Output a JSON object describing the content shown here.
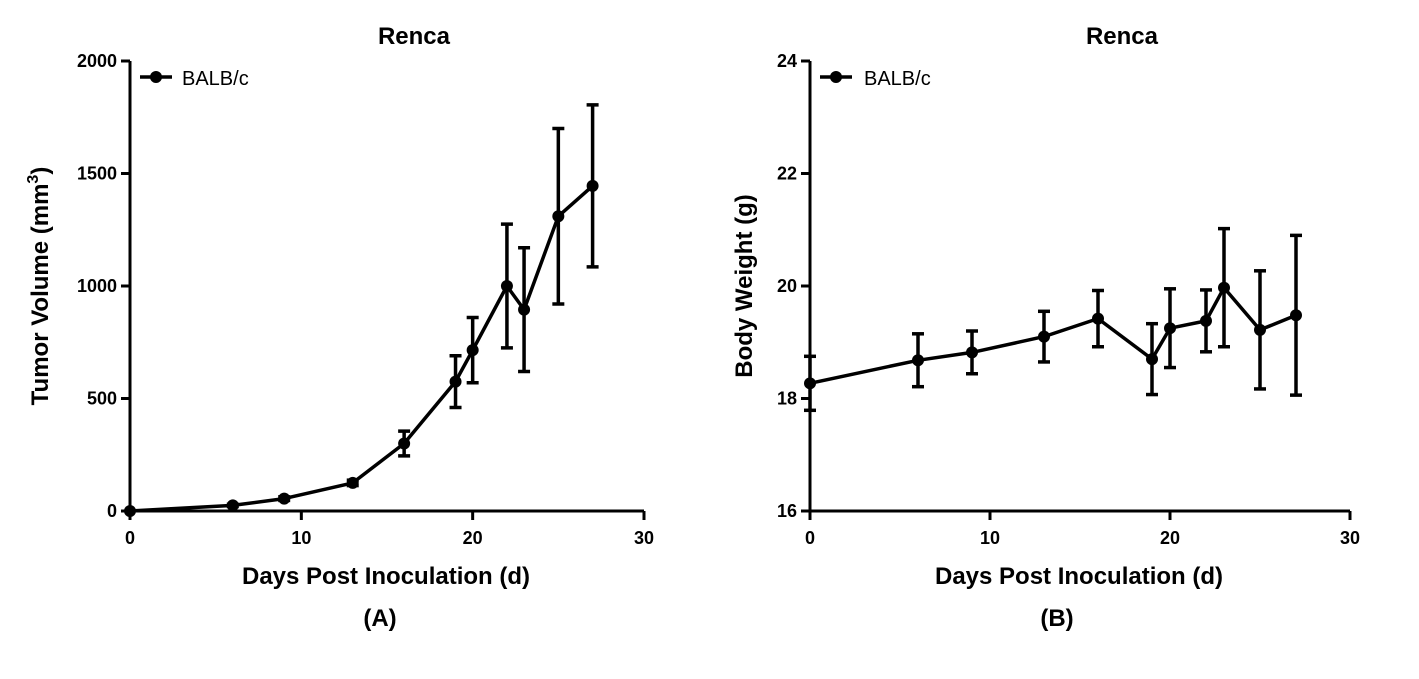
{
  "chart_data": [
    {
      "type": "line",
      "panel": "(A)",
      "title": "Renca",
      "xlabel": "Days Post Inoculation (d)",
      "ylabel": "Tumor Volume (mm",
      "ylabel_sup": "3",
      "ylabel_close": ")",
      "xlim": [
        0,
        30
      ],
      "ylim": [
        0,
        2000
      ],
      "xticks": [
        0,
        10,
        20,
        30
      ],
      "yticks": [
        0,
        500,
        1000,
        1500,
        2000
      ],
      "legend": "top-left",
      "series": [
        {
          "name": "BALB/c",
          "x": [
            0,
            6,
            9,
            13,
            16,
            19,
            20,
            22,
            23,
            25,
            27
          ],
          "y": [
            0,
            25,
            55,
            125,
            300,
            575,
            715,
            1000,
            895,
            1310,
            1445
          ],
          "err": [
            0,
            5,
            8,
            12,
            55,
            115,
            145,
            275,
            275,
            390,
            360
          ]
        }
      ]
    },
    {
      "type": "line",
      "panel": "(B)",
      "title": "Renca",
      "xlabel": "Days Post Inoculation (d)",
      "ylabel": "Body Weight (g)",
      "ylabel_sup": "",
      "ylabel_close": "",
      "xlim": [
        0,
        30
      ],
      "ylim": [
        16,
        24
      ],
      "xticks": [
        0,
        10,
        20,
        30
      ],
      "yticks": [
        16,
        18,
        20,
        22,
        24
      ],
      "legend": "top-left",
      "series": [
        {
          "name": "BALB/c",
          "x": [
            0,
            6,
            9,
            13,
            16,
            19,
            20,
            22,
            23,
            25,
            27
          ],
          "y": [
            18.27,
            18.68,
            18.82,
            19.1,
            19.42,
            18.7,
            19.25,
            19.38,
            19.97,
            19.22,
            19.48
          ],
          "err": [
            0.48,
            0.47,
            0.38,
            0.45,
            0.5,
            0.63,
            0.7,
            0.55,
            1.05,
            1.05,
            1.42
          ]
        }
      ]
    }
  ]
}
